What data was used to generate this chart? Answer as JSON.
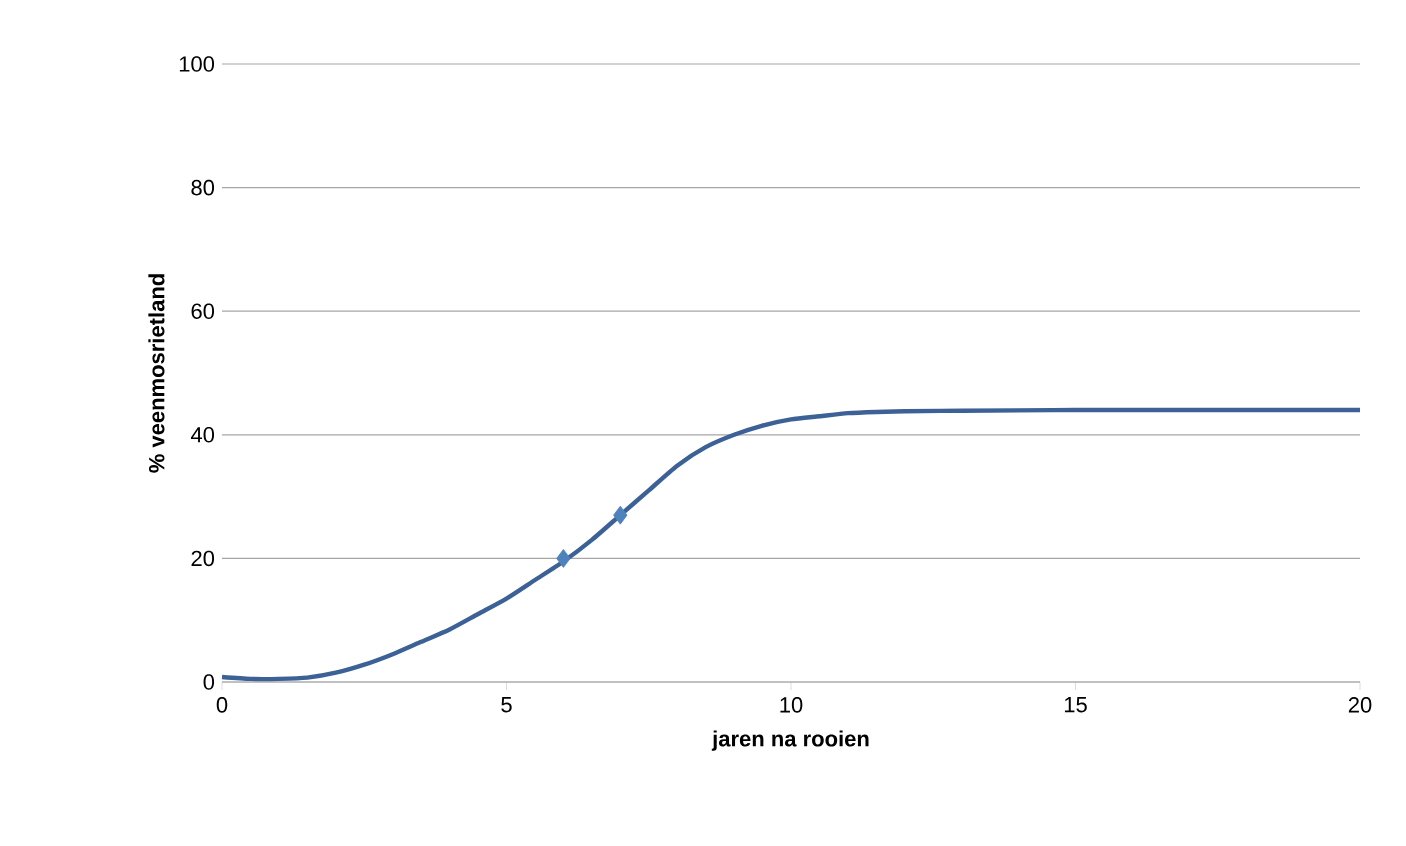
{
  "chart_data": {
    "type": "line",
    "xlabel": "jaren na rooien",
    "ylabel": "% veenmosrietland",
    "series": [
      {
        "color": "#3c6196",
        "marker": "none",
        "x": [
          0,
          0.5,
          1,
          1.5,
          2,
          2.5,
          3,
          3.5,
          4,
          4.5,
          5,
          5.5,
          6,
          6.5,
          7,
          7.5,
          8,
          8.5,
          9,
          9.5,
          10,
          10.5,
          11,
          11.5,
          12,
          13,
          15,
          20
        ],
        "values": [
          0.8,
          0.5,
          0.5,
          0.7,
          1.5,
          2.8,
          4.5,
          6.5,
          8.5,
          11,
          13.5,
          16.5,
          19.5,
          23,
          27,
          31,
          35,
          38,
          40,
          41.5,
          42.5,
          43,
          43.5,
          43.7,
          43.8,
          43.9,
          44,
          44
        ]
      },
      {
        "type": "scatter",
        "color": "#4f81bd",
        "marker": "diamond",
        "x": [
          6,
          7
        ],
        "values": [
          20,
          27
        ]
      }
    ],
    "xlim": [
      0,
      20
    ],
    "xticks": [
      0,
      5,
      10,
      15,
      20
    ],
    "ylim": [
      0,
      100
    ],
    "yticks": [
      0,
      20,
      40,
      60,
      80,
      100
    ],
    "grid": "y"
  }
}
